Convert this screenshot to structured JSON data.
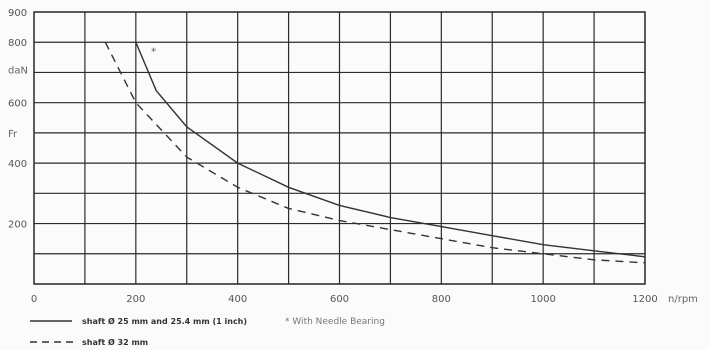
{
  "chart_data": {
    "type": "line",
    "title": "",
    "xlabel": "n/rpm",
    "ylabel": "daN",
    "ylabel_secondary": "Fr",
    "xlim": [
      0,
      1200
    ],
    "ylim": [
      0,
      900
    ],
    "x_tick_labels": [
      "0",
      "200",
      "400",
      "600",
      "800",
      "1000",
      "1200"
    ],
    "y_tick_labels": [
      "900",
      "800",
      "600",
      "400",
      "200"
    ],
    "grid": true,
    "annotation": "*",
    "legend": [
      {
        "key": "solid",
        "label": "shaft Ø 25 mm and 25.4 mm (1 inch)"
      },
      {
        "key": "dashed",
        "label": "shaft Ø 32 mm"
      },
      {
        "key": "star",
        "label": "* With Needle Bearing"
      }
    ],
    "series": [
      {
        "key": "solid",
        "x": [
          200,
          240,
          300,
          400,
          500,
          600,
          700,
          800,
          900,
          1000,
          1100,
          1200
        ],
        "y": [
          800,
          640,
          520,
          400,
          320,
          260,
          220,
          190,
          160,
          130,
          110,
          90
        ]
      },
      {
        "key": "dashed",
        "x": [
          140,
          200,
          300,
          400,
          500,
          600,
          700,
          800,
          900,
          1000,
          1100,
          1200
        ],
        "y": [
          800,
          600,
          420,
          320,
          250,
          210,
          180,
          150,
          120,
          100,
          80,
          70
        ]
      }
    ]
  },
  "colors": {
    "grid": "#2b2b2b",
    "solid_line": "#333333",
    "dashed_line": "#333333"
  }
}
